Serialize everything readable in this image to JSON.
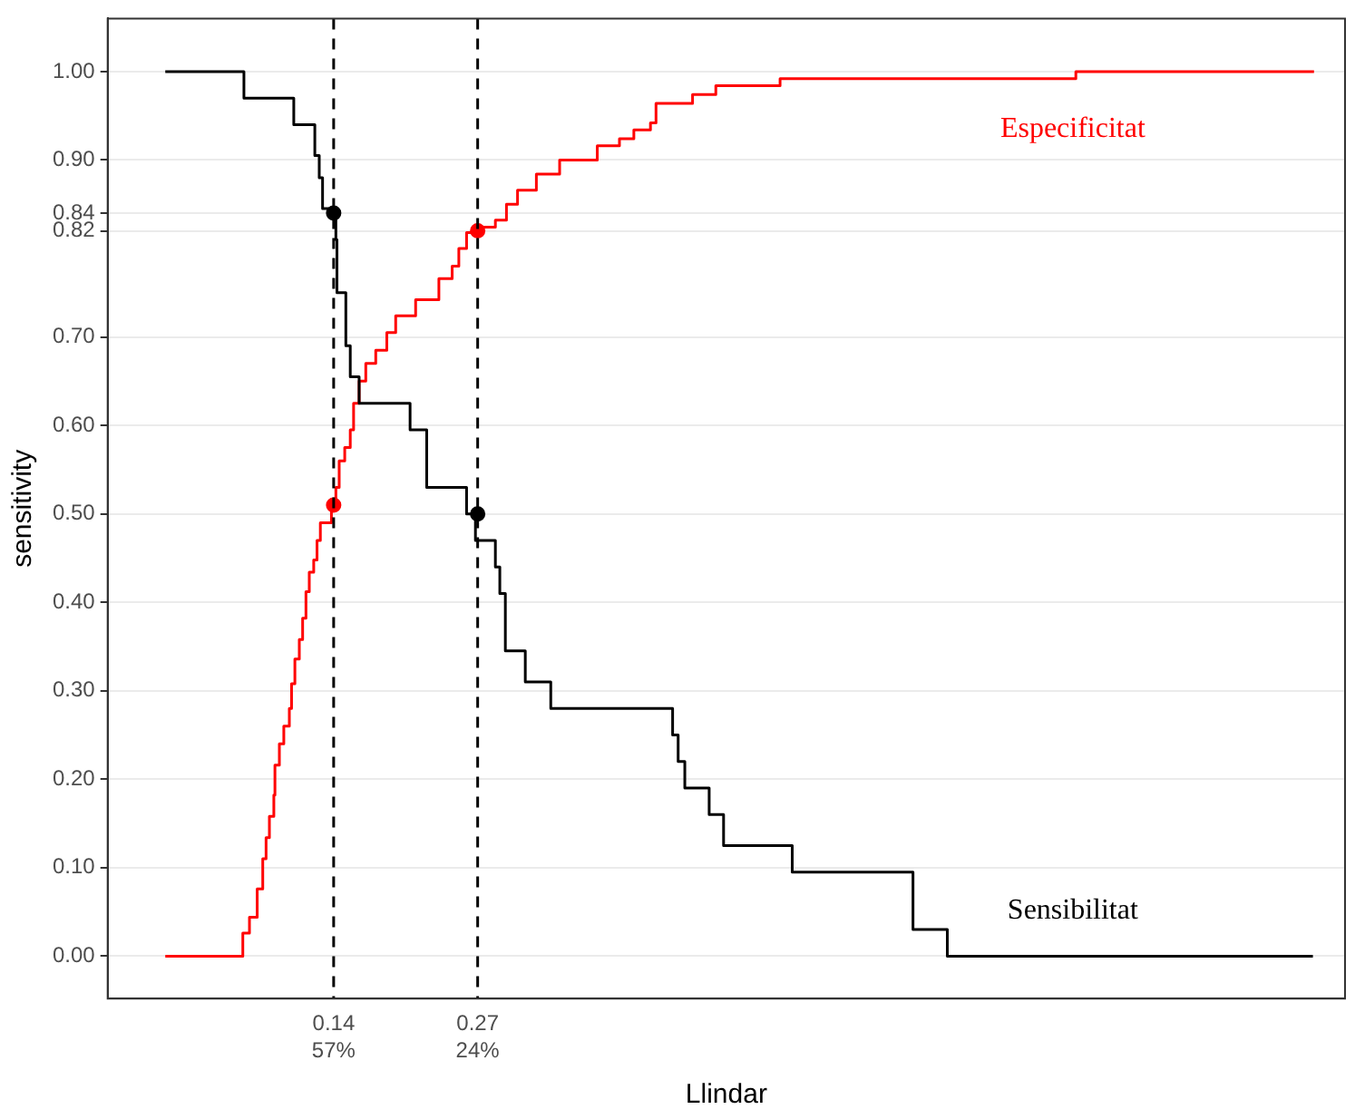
{
  "chart_data": {
    "type": "step",
    "xlabel": "Llindar",
    "ylabel": "sensitivity",
    "xlim": [
      -0.064,
      1.053
    ],
    "ylim": [
      -0.048,
      1.06
    ],
    "xticks": [
      0.14,
      0.27
    ],
    "annotations": [
      "57%",
      "24%"
    ],
    "yticks": [
      {
        "value": 0,
        "label": "0.00"
      },
      {
        "value": 0.1,
        "label": "0.10"
      },
      {
        "value": 0.2,
        "label": "0.20"
      },
      {
        "value": 0.3,
        "label": "0.30"
      },
      {
        "value": 0.4,
        "label": "0.40"
      },
      {
        "value": 0.5,
        "label": "0.50"
      },
      {
        "value": 0.6,
        "label": "0.60"
      },
      {
        "value": 0.7,
        "label": "0.70"
      },
      {
        "value": 0.82,
        "label": "0.82"
      },
      {
        "value": 0.84,
        "label": "0.84"
      },
      {
        "value": 0.9,
        "label": "0.90"
      },
      {
        "value": 1,
        "label": "1.00"
      }
    ],
    "grid": "y",
    "legend": false,
    "marker": "none",
    "line_style": "solid",
    "series": [
      {
        "name": "Sensibilitat",
        "color": "#000000",
        "x": [
          -0.012,
          0.059,
          0.104,
          0.123,
          0.127,
          0.13,
          0.142,
          0.143,
          0.151,
          0.155,
          0.163,
          0.209,
          0.224,
          0.26,
          0.268,
          0.286,
          0.29,
          0.295,
          0.313,
          0.336,
          0.446,
          0.451,
          0.457,
          0.479,
          0.492,
          0.554,
          0.663,
          0.694,
          1.024
        ],
        "values": [
          1,
          0.97,
          0.94,
          0.905,
          0.88,
          0.845,
          0.81,
          0.75,
          0.69,
          0.655,
          0.625,
          0.595,
          0.53,
          0.5,
          0.47,
          0.44,
          0.41,
          0.345,
          0.31,
          0.28,
          0.25,
          0.22,
          0.19,
          0.16,
          0.125,
          0.095,
          0.03,
          0,
          0
        ]
      },
      {
        "name": "Especificitat",
        "color": "#ff0000",
        "x": [
          -0.012,
          0.058,
          0.064,
          0.071,
          0.076,
          0.079,
          0.082,
          0.086,
          0.087,
          0.091,
          0.095,
          0.1,
          0.102,
          0.105,
          0.109,
          0.112,
          0.115,
          0.118,
          0.122,
          0.125,
          0.128,
          0.138,
          0.142,
          0.145,
          0.15,
          0.155,
          0.158,
          0.163,
          0.169,
          0.178,
          0.188,
          0.196,
          0.214,
          0.235,
          0.247,
          0.253,
          0.26,
          0.268,
          0.286,
          0.296,
          0.306,
          0.323,
          0.344,
          0.378,
          0.398,
          0.411,
          0.426,
          0.431,
          0.464,
          0.485,
          0.543,
          0.81,
          1.025
        ],
        "values": [
          0,
          0.026,
          0.044,
          0.076,
          0.11,
          0.134,
          0.158,
          0.182,
          0.216,
          0.24,
          0.26,
          0.28,
          0.308,
          0.336,
          0.358,
          0.382,
          0.412,
          0.434,
          0.448,
          0.47,
          0.49,
          0.508,
          0.53,
          0.56,
          0.575,
          0.595,
          0.625,
          0.65,
          0.67,
          0.685,
          0.705,
          0.724,
          0.742,
          0.766,
          0.78,
          0.8,
          0.818,
          0.824,
          0.832,
          0.85,
          0.866,
          0.884,
          0.9,
          0.916,
          0.924,
          0.934,
          0.942,
          0.964,
          0.974,
          0.984,
          0.992,
          1,
          1
        ]
      },
      {
        "type": "scatter",
        "color": "#000000",
        "marker": "circle",
        "x": [
          0.14,
          0.27
        ],
        "values": [
          0.84,
          0.5
        ]
      },
      {
        "type": "scatter",
        "color": "#ff0000",
        "marker": "circle",
        "x": [
          0.14,
          0.27
        ],
        "values": [
          0.51,
          0.82
        ]
      }
    ],
    "ref_lines": [
      {
        "axis": "x",
        "value": 0.14,
        "line_style": "dashed",
        "color": "#000000"
      },
      {
        "axis": "x",
        "value": 0.27,
        "line_style": "dashed",
        "color": "#000000"
      }
    ]
  }
}
